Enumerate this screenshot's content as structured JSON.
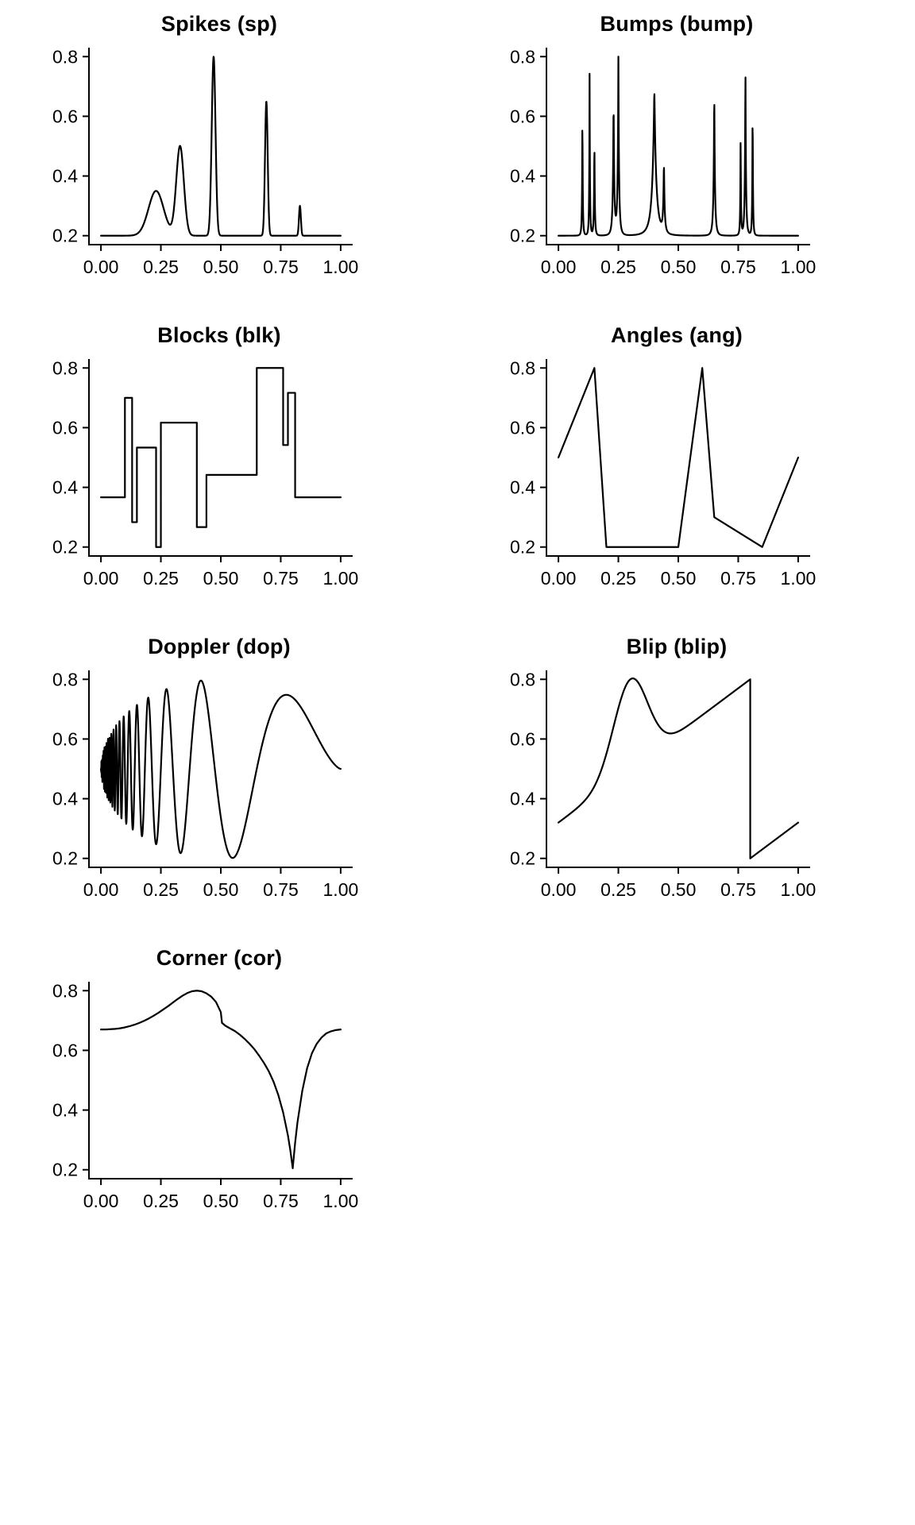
{
  "figure": {
    "background": "#ffffff",
    "line_color": "#000000",
    "text_color": "#000000",
    "columns": 2,
    "rows": 4
  },
  "chart_data": [
    {
      "id": "spikes",
      "type": "line",
      "title": "Spikes (sp)",
      "xlim": [
        -0.05,
        1.05
      ],
      "ylim": [
        0.17,
        0.83
      ],
      "x_ticks": [
        "0.00",
        "0.25",
        "0.50",
        "0.75",
        "1.00"
      ],
      "x_tick_values": [
        0,
        0.25,
        0.5,
        0.75,
        1
      ],
      "y_ticks": [
        "0.2",
        "0.4",
        "0.6",
        "0.8"
      ],
      "y_tick_values": [
        0.2,
        0.4,
        0.6,
        0.8
      ],
      "series_color": "#000000",
      "generator": {
        "kind": "pieces",
        "pieces": [
          {
            "range": [
              0,
              1
            ],
            "samples": 1024,
            "intercept": 0.2,
            "slope": 0,
            "gaussians": [
              {
                "a": 0.15,
                "b": 500,
                "c": 0.23
              },
              {
                "a": 0.3,
                "b": 2000,
                "c": 0.33
              },
              {
                "a": 0.6,
                "b": 8000,
                "c": 0.47
              },
              {
                "a": 0.45,
                "b": 16000,
                "c": 0.69
              },
              {
                "a": 0.1,
                "b": 32000,
                "c": 0.83
              }
            ]
          }
        ]
      }
    },
    {
      "id": "bumps",
      "type": "line",
      "title": "Bumps (bump)",
      "xlim": [
        -0.05,
        1.05
      ],
      "ylim": [
        0.17,
        0.83
      ],
      "x_ticks": [
        "0.00",
        "0.25",
        "0.50",
        "0.75",
        "1.00"
      ],
      "x_tick_values": [
        0,
        0.25,
        0.5,
        0.75,
        1
      ],
      "y_ticks": [
        "0.2",
        "0.4",
        "0.6",
        "0.8"
      ],
      "y_tick_values": [
        0.2,
        0.4,
        0.6,
        0.8
      ],
      "series_color": "#000000",
      "generator": {
        "kind": "bumps",
        "samples": 1024,
        "positions": [
          0.1,
          0.13,
          0.15,
          0.23,
          0.25,
          0.4,
          0.44,
          0.65,
          0.76,
          0.78,
          0.81
        ],
        "heights": [
          4,
          5,
          3,
          4,
          5,
          4.2,
          2.1,
          4.3,
          3.1,
          5.1,
          4.2
        ],
        "widths": [
          0.005,
          0.005,
          0.006,
          0.01,
          0.01,
          0.03,
          0.01,
          0.01,
          0.005,
          0.008,
          0.005
        ],
        "normalize": [
          0.2,
          0.8
        ]
      }
    },
    {
      "id": "blocks",
      "type": "line",
      "title": "Blocks (blk)",
      "xlim": [
        -0.05,
        1.05
      ],
      "ylim": [
        0.17,
        0.83
      ],
      "x_ticks": [
        "0.00",
        "0.25",
        "0.50",
        "0.75",
        "1.00"
      ],
      "x_tick_values": [
        0,
        0.25,
        0.5,
        0.75,
        1
      ],
      "y_ticks": [
        "0.2",
        "0.4",
        "0.6",
        "0.8"
      ],
      "y_tick_values": [
        0.2,
        0.4,
        0.6,
        0.8
      ],
      "series_color": "#000000",
      "generator": {
        "kind": "step",
        "start": 0,
        "end": 1,
        "breaks": [
          0.1,
          0.13,
          0.15,
          0.23,
          0.25,
          0.4,
          0.44,
          0.65,
          0.76,
          0.78,
          0.81
        ],
        "levels": [
          0.3667,
          0.7,
          0.2833,
          0.5333,
          0.2,
          0.6167,
          0.2667,
          0.4417,
          0.8,
          0.5417,
          0.7167,
          0.3667
        ]
      }
    },
    {
      "id": "angles",
      "type": "line",
      "title": "Angles (ang)",
      "xlim": [
        -0.05,
        1.05
      ],
      "ylim": [
        0.17,
        0.83
      ],
      "x_ticks": [
        "0.00",
        "0.25",
        "0.50",
        "0.75",
        "1.00"
      ],
      "x_tick_values": [
        0,
        0.25,
        0.5,
        0.75,
        1
      ],
      "y_ticks": [
        "0.2",
        "0.4",
        "0.6",
        "0.8"
      ],
      "y_tick_values": [
        0.2,
        0.4,
        0.6,
        0.8
      ],
      "series_color": "#000000",
      "generator": {
        "kind": "polyline",
        "x": [
          0,
          0.15,
          0.2,
          0.5,
          0.6,
          0.65,
          0.85,
          1
        ],
        "y": [
          0.5,
          0.8,
          0.2,
          0.2,
          0.8,
          0.3,
          0.2,
          0.5
        ]
      }
    },
    {
      "id": "doppler",
      "type": "line",
      "title": "Doppler (dop)",
      "xlim": [
        -0.05,
        1.05
      ],
      "ylim": [
        0.17,
        0.83
      ],
      "x_ticks": [
        "0.00",
        "0.25",
        "0.50",
        "0.75",
        "1.00"
      ],
      "x_tick_values": [
        0,
        0.25,
        0.5,
        0.75,
        1
      ],
      "y_ticks": [
        "0.2",
        "0.4",
        "0.6",
        "0.8"
      ],
      "y_tick_values": [
        0.2,
        0.4,
        0.6,
        0.8
      ],
      "series_color": "#000000",
      "generator": {
        "kind": "doppler",
        "samples": 1024,
        "eps": 0.05,
        "cycles": 1.05,
        "offset": 0.5,
        "scale": 0.6
      }
    },
    {
      "id": "blip",
      "type": "line",
      "title": "Blip (blip)",
      "xlim": [
        -0.05,
        1.05
      ],
      "ylim": [
        0.17,
        0.83
      ],
      "x_ticks": [
        "0.00",
        "0.25",
        "0.50",
        "0.75",
        "1.00"
      ],
      "x_tick_values": [
        0,
        0.25,
        0.5,
        0.75,
        1
      ],
      "y_ticks": [
        "0.2",
        "0.4",
        "0.6",
        "0.8"
      ],
      "y_tick_values": [
        0.2,
        0.4,
        0.6,
        0.8
      ],
      "series_color": "#000000",
      "generator": {
        "kind": "pieces",
        "pieces": [
          {
            "range": [
              0,
              0.8
            ],
            "samples": 820,
            "intercept": 0.32,
            "slope": 0.6,
            "gaussians": [
              {
                "a": 0.3,
                "b": 100,
                "c": 0.3
              }
            ]
          },
          {
            "range": [
              0.8,
              1
            ],
            "samples": 210,
            "intercept": -0.28,
            "slope": 0.6,
            "gaussians": [
              {
                "a": 0.3,
                "b": 100,
                "c": 1.3
              }
            ]
          }
        ]
      }
    },
    {
      "id": "corner",
      "type": "line",
      "title": "Corner (cor)",
      "xlim": [
        -0.05,
        1.05
      ],
      "ylim": [
        0.17,
        0.83
      ],
      "x_ticks": [
        "0.00",
        "0.25",
        "0.50",
        "0.75",
        "1.00"
      ],
      "x_tick_values": [
        0,
        0.25,
        0.5,
        0.75,
        1
      ],
      "y_ticks": [
        "0.2",
        "0.4",
        "0.6",
        "0.8"
      ],
      "y_tick_values": [
        0.2,
        0.4,
        0.6,
        0.8
      ],
      "series_color": "#000000",
      "generator": {
        "kind": "points",
        "x": [
          0,
          0.02,
          0.04,
          0.06,
          0.08,
          0.1,
          0.12,
          0.14,
          0.16,
          0.18,
          0.2,
          0.22,
          0.24,
          0.26,
          0.28,
          0.3,
          0.32,
          0.34,
          0.36,
          0.38,
          0.4,
          0.42,
          0.44,
          0.46,
          0.48,
          0.5,
          0.505,
          0.52,
          0.54,
          0.56,
          0.58,
          0.6,
          0.62,
          0.64,
          0.66,
          0.68,
          0.7,
          0.72,
          0.74,
          0.76,
          0.78,
          0.79,
          0.8,
          0.81,
          0.82,
          0.84,
          0.86,
          0.88,
          0.9,
          0.92,
          0.94,
          0.96,
          0.98,
          1.0
        ],
        "y": [
          0.67,
          0.67,
          0.671,
          0.672,
          0.674,
          0.677,
          0.681,
          0.686,
          0.692,
          0.699,
          0.707,
          0.716,
          0.726,
          0.737,
          0.748,
          0.76,
          0.772,
          0.783,
          0.792,
          0.798,
          0.8,
          0.798,
          0.791,
          0.78,
          0.762,
          0.728,
          0.692,
          0.682,
          0.673,
          0.664,
          0.652,
          0.638,
          0.622,
          0.604,
          0.582,
          0.558,
          0.53,
          0.495,
          0.45,
          0.392,
          0.315,
          0.265,
          0.205,
          0.29,
          0.36,
          0.465,
          0.54,
          0.59,
          0.622,
          0.643,
          0.657,
          0.664,
          0.668,
          0.67
        ]
      }
    }
  ]
}
